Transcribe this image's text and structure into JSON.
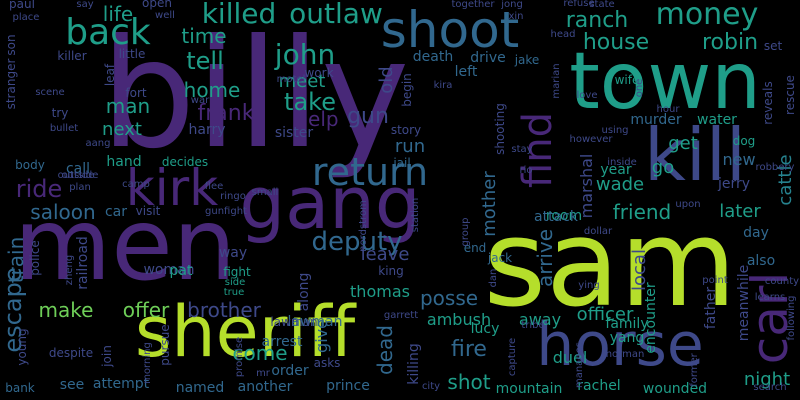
{
  "palette": {
    "background": "#000000",
    "dark_purple": "#440154",
    "purple": "#482878",
    "indigo": "#3e4989",
    "blue": "#31688e",
    "teal": "#26828e",
    "green_teal": "#1f9e89",
    "green": "#35b779",
    "light_green": "#6ece58",
    "yellow_green": "#b5de2b"
  },
  "words": [
    "billy",
    "sam",
    "men",
    "town",
    "sheriff",
    "kill",
    "gang",
    "horse",
    "shoot",
    "carl",
    "kirk",
    "find",
    "back",
    "return",
    "deputy",
    "money",
    "killed",
    "outlaw",
    "john",
    "ranch",
    "house",
    "robin",
    "tell",
    "take",
    "gun",
    "frank",
    "home",
    "time",
    "life",
    "help",
    "man",
    "next",
    "ride",
    "saloon",
    "escape",
    "train",
    "make",
    "offer",
    "brother",
    "come",
    "fire",
    "shot",
    "dead",
    "arrive",
    "mother",
    "posse",
    "leave",
    "local",
    "friend",
    "later",
    "wade",
    "get",
    "go",
    "night",
    "cattle",
    "new",
    "jerry",
    "marshal",
    "run",
    "old",
    "meet",
    "harry",
    "sister",
    "officer",
    "give",
    "thomas",
    "ambush",
    "lucy",
    "away",
    "duel",
    "family",
    "rachel",
    "wounded",
    "mountain",
    "prince",
    "named",
    "another",
    "order",
    "arrest",
    "see",
    "attempt",
    "bank",
    "killing",
    "way",
    "woman",
    "king",
    "lawman",
    "along",
    "story",
    "jail",
    "murder",
    "water",
    "dog",
    "day",
    "also",
    "father",
    "encounter",
    "meanwhile",
    "yang",
    "year",
    "wife",
    "left",
    "drive",
    "death",
    "jake",
    "hand",
    "decides",
    "body",
    "call",
    "car",
    "pat",
    "visit",
    "room",
    "end",
    "jack",
    "attack",
    "police",
    "railroad",
    "despite",
    "join",
    "young",
    "pursue",
    "lawman",
    "fight",
    "side",
    "true",
    "ringo",
    "small",
    "camp",
    "plan",
    "outside",
    "outside",
    "stranger",
    "son",
    "paul",
    "place",
    "say",
    "well",
    "open",
    "little",
    "killer",
    "leaf",
    "fort",
    "war",
    "motel",
    "work",
    "begin",
    "kira",
    "scene",
    "try",
    "bullet",
    "aang",
    "flee",
    "gunfight",
    "nordstrom",
    "station",
    "group",
    "rio",
    "stay",
    "shooting",
    "however",
    "using",
    "love",
    "one",
    "reveals",
    "rescue",
    "robbery",
    "upon",
    "county",
    "learns",
    "following",
    "search",
    "former",
    "manages",
    "norman",
    "ying",
    "tribe",
    "capture",
    "garrett",
    "dan",
    "city",
    "asks",
    "mr",
    "promise",
    "morning",
    "zheng",
    "together",
    "jong",
    "xin",
    "refuse",
    "state",
    "head",
    "marian",
    "set",
    "inside",
    "hour",
    "point",
    "dollar"
  ]
}
